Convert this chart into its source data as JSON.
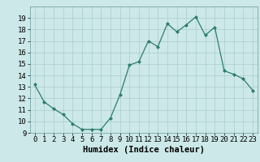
{
  "x": [
    0,
    1,
    2,
    3,
    4,
    5,
    6,
    7,
    8,
    9,
    10,
    11,
    12,
    13,
    14,
    15,
    16,
    17,
    18,
    19,
    20,
    21,
    22,
    23
  ],
  "y": [
    13.2,
    11.7,
    11.1,
    10.6,
    9.8,
    9.3,
    9.3,
    9.3,
    10.3,
    12.3,
    14.9,
    15.2,
    17.0,
    16.5,
    18.5,
    17.8,
    18.4,
    19.1,
    17.5,
    18.2,
    14.4,
    14.1,
    13.7,
    12.7
  ],
  "xlabel": "Humidex (Indice chaleur)",
  "ylim": [
    9,
    20
  ],
  "xlim": [
    -0.5,
    23.5
  ],
  "yticks": [
    9,
    10,
    11,
    12,
    13,
    14,
    15,
    16,
    17,
    18,
    19
  ],
  "xticks": [
    0,
    1,
    2,
    3,
    4,
    5,
    6,
    7,
    8,
    9,
    10,
    11,
    12,
    13,
    14,
    15,
    16,
    17,
    18,
    19,
    20,
    21,
    22,
    23
  ],
  "line_color": "#2d7d6e",
  "marker_color": "#2d7d6e",
  "bg_color": "#cce8e8",
  "grid_color": "#aacccc",
  "xlabel_fontsize": 7.5,
  "tick_fontsize": 6.5
}
